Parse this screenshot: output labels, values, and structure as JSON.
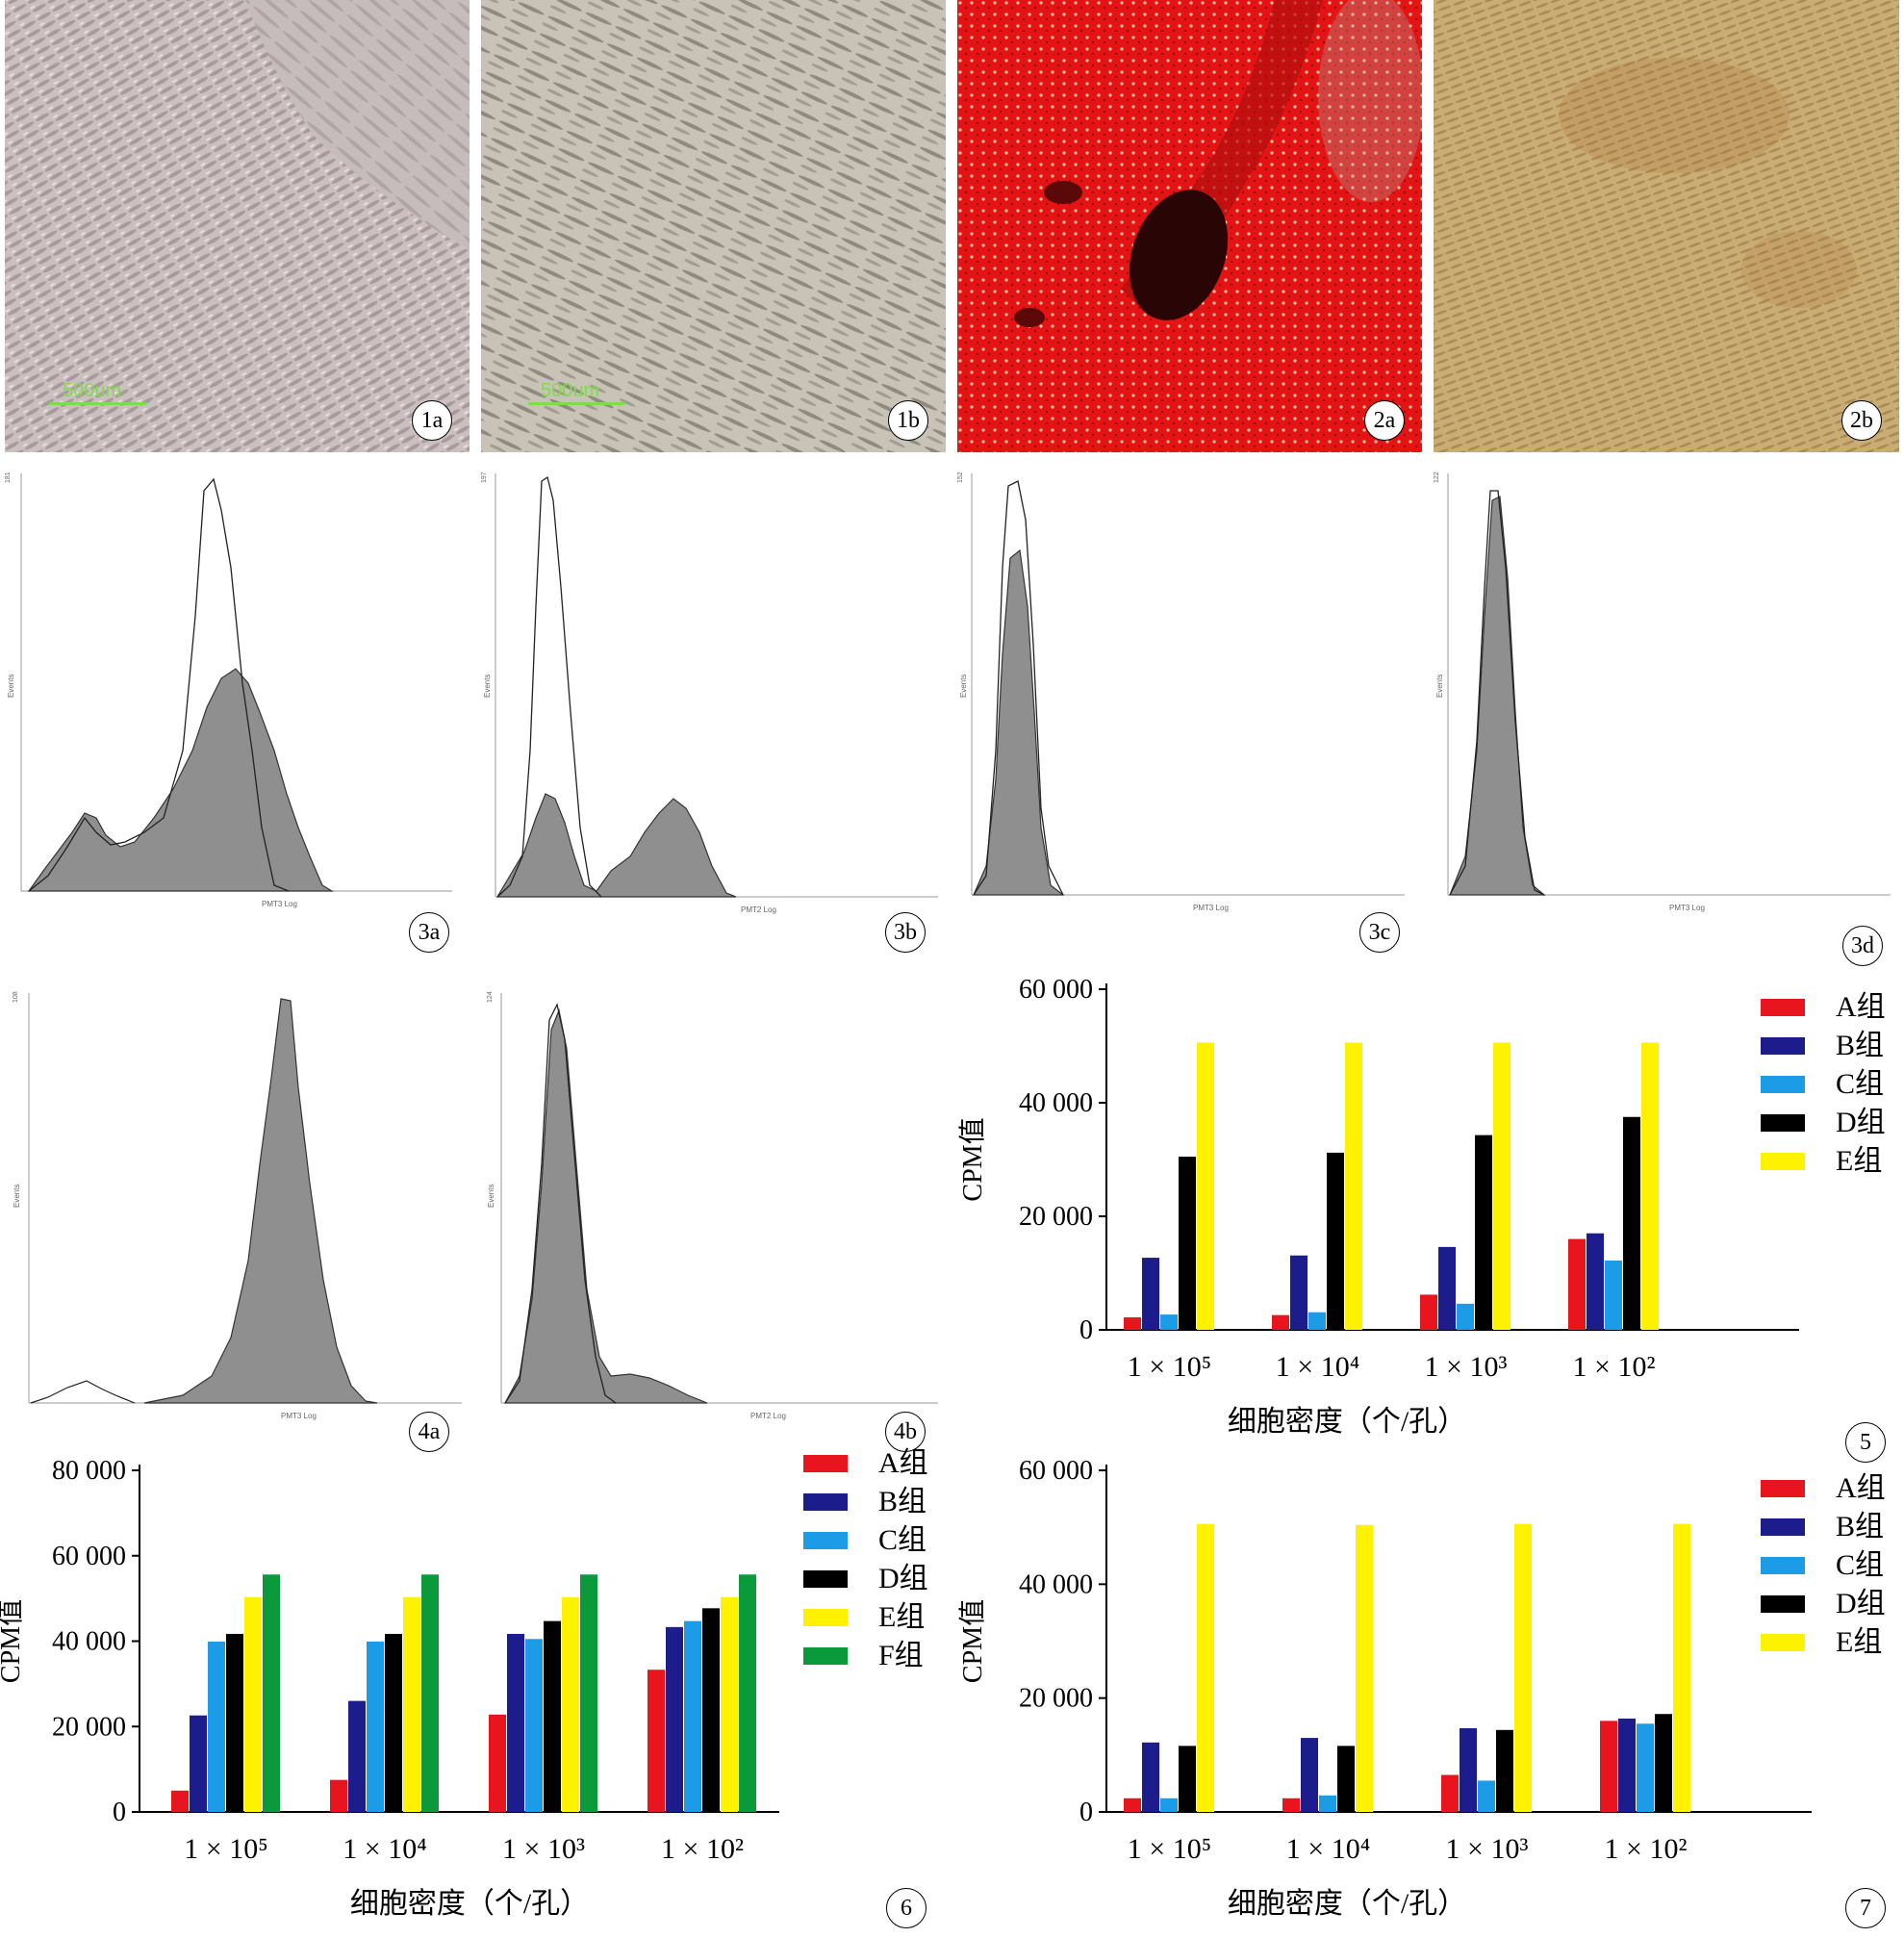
{
  "row1": {
    "p1a": {
      "label": "1a",
      "scale": "500um"
    },
    "p1b": {
      "label": "1b",
      "scale": "500um"
    },
    "p2a": {
      "label": "2a"
    },
    "p2b": {
      "label": "2b"
    }
  },
  "flow": [
    {
      "label": "3a",
      "ymax": "181",
      "ylabel": "Events",
      "xlabel": "PMT3 Log"
    },
    {
      "label": "3b",
      "ymax": "197",
      "ylabel": "Events",
      "xlabel": "PMT2 Log"
    },
    {
      "label": "3c",
      "ymax": "152",
      "ylabel": "Events",
      "xlabel": "PMT3 Log"
    },
    {
      "label": "3d",
      "ymax": "122",
      "ylabel": "Events",
      "xlabel": "PMT3 Log"
    },
    {
      "label": "4a",
      "ymax": "108",
      "ylabel": "Events",
      "xlabel": "PMT3 Log"
    },
    {
      "label": "4b",
      "ymax": "124",
      "ylabel": "Events",
      "xlabel": "PMT2 Log"
    }
  ],
  "colors": {
    "A": "#e8141e",
    "B": "#1c1c8c",
    "C": "#1c9be6",
    "D": "#000000",
    "E": "#fff200",
    "F": "#0a9a3c"
  },
  "chart_data": [
    {
      "panel": "5",
      "type": "bar",
      "categories": [
        "1 × 10⁵",
        "1 × 10⁴",
        "1 × 10³",
        "1 × 10²"
      ],
      "series": [
        {
          "name": "A组",
          "values": [
            2200,
            2600,
            6200,
            16000
          ]
        },
        {
          "name": "B组",
          "values": [
            12700,
            13100,
            14600,
            17000
          ]
        },
        {
          "name": "C组",
          "values": [
            2700,
            3100,
            4600,
            12200
          ]
        },
        {
          "name": "D组",
          "values": [
            30500,
            31200,
            34300,
            37500
          ]
        },
        {
          "name": "E组",
          "values": [
            50600,
            50600,
            50600,
            50600
          ]
        }
      ],
      "ylabel": "CPM值",
      "xlabel": "细胞密度（个/孔）",
      "ylim": [
        0,
        60000
      ],
      "yticks": [
        "0",
        "20 000",
        "40 000",
        "60 000"
      ],
      "legend": "top-right"
    },
    {
      "panel": "6",
      "type": "bar",
      "categories": [
        "1 × 10⁵",
        "1 × 10⁴",
        "1 × 10³",
        "1 × 10²"
      ],
      "series": [
        {
          "name": "A组",
          "values": [
            5000,
            7500,
            22800,
            33300
          ]
        },
        {
          "name": "B组",
          "values": [
            22600,
            26000,
            41700,
            43300
          ]
        },
        {
          "name": "C组",
          "values": [
            39900,
            39900,
            40500,
            44700
          ]
        },
        {
          "name": "D组",
          "values": [
            41700,
            41700,
            44700,
            47700
          ]
        },
        {
          "name": "E组",
          "values": [
            50300,
            50300,
            50300,
            50300
          ]
        },
        {
          "name": "F组",
          "values": [
            55600,
            55600,
            55600,
            55600
          ]
        }
      ],
      "ylabel": "CPM值",
      "xlabel": "细胞密度（个/孔）",
      "ylim": [
        0,
        80000
      ],
      "yticks": [
        "0",
        "20 000",
        "40 000",
        "60 000",
        "80 000"
      ],
      "legend": "top-right"
    },
    {
      "panel": "7",
      "type": "bar",
      "categories": [
        "1 × 10⁵",
        "1 × 10⁴",
        "1 × 10³",
        "1 × 10²"
      ],
      "series": [
        {
          "name": "A组",
          "values": [
            2400,
            2400,
            6500,
            16000
          ]
        },
        {
          "name": "B组",
          "values": [
            12200,
            13000,
            14700,
            16400
          ]
        },
        {
          "name": "C组",
          "values": [
            2400,
            2900,
            5500,
            15500
          ]
        },
        {
          "name": "D组",
          "values": [
            11600,
            11600,
            14400,
            17200
          ]
        },
        {
          "name": "E组",
          "values": [
            50600,
            50400,
            50600,
            50600
          ]
        }
      ],
      "ylabel": "CPM值",
      "xlabel": "细胞密度（个/孔）",
      "ylim": [
        0,
        60000
      ],
      "yticks": [
        "0",
        "20 000",
        "40 000",
        "60 000"
      ],
      "legend": "top-right"
    }
  ]
}
